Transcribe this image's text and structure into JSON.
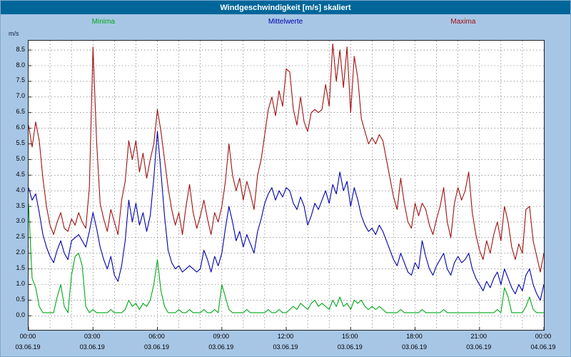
{
  "window": {
    "title": "Windgeschwindigkeit [m/s] skaliert"
  },
  "unit_label": "m/s",
  "chart_data": {
    "type": "line",
    "title": "Windgeschwindigkeit [m/s] skaliert",
    "ylabel": "m/s",
    "xlabel": "",
    "grid": "dashed, hourly vertical lines, 0.5 m/s horizontal lines",
    "legend_position": "top",
    "ylim": [
      -0.45,
      8.8
    ],
    "y_ticks": [
      0.0,
      0.5,
      1.0,
      1.5,
      2.0,
      2.5,
      3.0,
      3.5,
      4.0,
      4.5,
      5.0,
      5.5,
      6.0,
      6.5,
      7.0,
      7.5,
      8.0,
      8.5
    ],
    "x_hours_total": 24,
    "x_ticks": [
      {
        "hour": 0,
        "time": "00:00",
        "date": "03.06.19"
      },
      {
        "hour": 3,
        "time": "03:00",
        "date": "03.06.19"
      },
      {
        "hour": 6,
        "time": "06:00",
        "date": "03.06.19"
      },
      {
        "hour": 9,
        "time": "09:00",
        "date": "03.06.19"
      },
      {
        "hour": 12,
        "time": "12:00",
        "date": "03.06.19"
      },
      {
        "hour": 15,
        "time": "15:00",
        "date": "03.06.19"
      },
      {
        "hour": 18,
        "time": "18:00",
        "date": "03.06.19"
      },
      {
        "hour": 21,
        "time": "21:00",
        "date": "03.06.19"
      },
      {
        "hour": 24,
        "time": "00:00",
        "date": "04.06.19"
      }
    ],
    "sample_interval_minutes": 10,
    "series": [
      {
        "name": "Minima",
        "color": "#00a818",
        "values": [
          3.6,
          1.2,
          0.9,
          0.3,
          0.1,
          0.1,
          0.1,
          0.1,
          0.6,
          1.0,
          0.3,
          0.1,
          1.3,
          1.9,
          2.0,
          1.6,
          0.3,
          0.1,
          0.2,
          0.1,
          0.1,
          0.1,
          0.1,
          0.2,
          0.1,
          0.1,
          0.1,
          0.2,
          0.5,
          0.3,
          0.4,
          0.2,
          0.4,
          0.3,
          0.5,
          1.0,
          1.8,
          0.8,
          0.3,
          0.1,
          0.1,
          0.1,
          0.2,
          0.1,
          0.1,
          0.2,
          0.1,
          0.1,
          0.1,
          0.2,
          0.1,
          0.1,
          0.2,
          0.1,
          1.0,
          0.6,
          0.2,
          0.1,
          0.1,
          0.1,
          0.1,
          0.2,
          0.1,
          0.1,
          0.1,
          0.1,
          0.1,
          0.2,
          0.1,
          0.1,
          0.2,
          0.1,
          0.1,
          0.2,
          0.3,
          0.2,
          0.4,
          0.3,
          0.2,
          0.4,
          0.5,
          0.3,
          0.4,
          0.3,
          0.2,
          0.5,
          0.3,
          0.6,
          0.3,
          0.4,
          0.2,
          0.5,
          0.4,
          0.5,
          0.3,
          0.2,
          0.3,
          0.2,
          0.3,
          0.2,
          0.1,
          0.1,
          0.1,
          0.1,
          0.2,
          0.1,
          0.1,
          0.1,
          0.1,
          0.1,
          0.2,
          0.1,
          0.1,
          0.1,
          0.1,
          0.1,
          0.2,
          0.1,
          0.1,
          0.1,
          0.1,
          0.1,
          0.1,
          0.1,
          0.1,
          0.1,
          0.1,
          0.1,
          0.1,
          0.1,
          0.1,
          0.2,
          0.1,
          0.9,
          0.6,
          0.1,
          0.1,
          0.1,
          0.1,
          0.3,
          0.6,
          0.2,
          0.1,
          0.1,
          0.1
        ]
      },
      {
        "name": "Mittelwerte",
        "color": "#0000a8",
        "values": [
          4.1,
          3.7,
          3.9,
          3.3,
          2.6,
          2.2,
          1.9,
          1.7,
          2.1,
          2.4,
          2.0,
          1.8,
          2.4,
          2.5,
          2.6,
          2.4,
          2.2,
          2.7,
          3.3,
          2.8,
          2.2,
          1.8,
          1.5,
          1.9,
          1.3,
          1.1,
          1.6,
          2.4,
          3.7,
          3.0,
          3.6,
          2.9,
          3.3,
          2.7,
          3.2,
          4.4,
          5.9,
          4.6,
          3.2,
          2.1,
          1.7,
          1.5,
          1.6,
          1.4,
          1.5,
          1.6,
          1.5,
          1.4,
          1.5,
          2.1,
          1.8,
          1.4,
          1.9,
          1.6,
          2.0,
          2.8,
          3.5,
          3.0,
          2.4,
          2.7,
          2.2,
          2.6,
          2.3,
          2.0,
          2.7,
          3.1,
          3.6,
          3.9,
          4.1,
          3.7,
          4.0,
          3.8,
          4.1,
          4.0,
          3.6,
          3.4,
          3.8,
          3.5,
          2.9,
          3.2,
          3.6,
          3.4,
          3.7,
          4.0,
          3.6,
          4.2,
          3.9,
          4.6,
          4.0,
          4.3,
          3.5,
          4.1,
          3.7,
          3.2,
          2.9,
          2.7,
          2.8,
          2.6,
          2.9,
          2.7,
          2.4,
          2.1,
          1.8,
          1.6,
          2.0,
          1.7,
          1.4,
          1.3,
          1.7,
          1.5,
          2.4,
          1.9,
          1.5,
          1.3,
          1.6,
          1.8,
          2.0,
          1.5,
          1.3,
          1.7,
          1.9,
          1.7,
          1.8,
          2.0,
          1.5,
          1.2,
          1.0,
          0.8,
          1.1,
          0.9,
          1.2,
          1.4,
          1.0,
          1.5,
          1.2,
          0.9,
          0.7,
          1.0,
          0.8,
          1.3,
          1.5,
          1.0,
          0.7,
          0.5,
          1.0
        ]
      },
      {
        "name": "Maxima",
        "color": "#a01010",
        "values": [
          6.1,
          5.4,
          6.2,
          5.6,
          4.4,
          3.5,
          2.9,
          2.6,
          3.0,
          3.3,
          2.8,
          2.7,
          3.1,
          2.9,
          3.3,
          3.0,
          2.8,
          4.1,
          8.6,
          5.6,
          3.6,
          3.1,
          2.7,
          3.4,
          3.0,
          2.6,
          3.7,
          4.3,
          5.6,
          5.0,
          5.6,
          4.6,
          5.2,
          4.4,
          5.0,
          5.5,
          6.6,
          5.9,
          5.0,
          4.1,
          3.4,
          2.9,
          3.3,
          2.6,
          3.5,
          4.2,
          3.3,
          2.8,
          3.2,
          3.7,
          3.1,
          2.6,
          3.3,
          3.0,
          3.5,
          4.3,
          5.5,
          4.5,
          4.0,
          4.4,
          3.7,
          4.3,
          3.9,
          3.4,
          4.5,
          5.0,
          5.8,
          6.6,
          7.0,
          6.4,
          7.2,
          6.7,
          7.9,
          7.8,
          6.6,
          6.1,
          7.0,
          6.2,
          5.9,
          6.5,
          6.6,
          6.5,
          6.6,
          7.4,
          6.7,
          8.7,
          7.5,
          8.5,
          7.3,
          8.6,
          6.5,
          8.3,
          7.6,
          6.3,
          5.9,
          5.5,
          5.7,
          5.5,
          5.8,
          5.6,
          5.0,
          4.4,
          3.8,
          3.4,
          4.4,
          3.6,
          3.0,
          2.8,
          3.6,
          3.2,
          3.6,
          3.4,
          2.9,
          2.6,
          3.1,
          3.5,
          4.1,
          3.0,
          2.5,
          3.6,
          4.1,
          3.7,
          4.0,
          4.6,
          3.3,
          2.6,
          2.1,
          1.8,
          2.4,
          2.0,
          2.6,
          3.0,
          2.4,
          3.5,
          3.0,
          2.2,
          1.8,
          2.3,
          2.0,
          3.4,
          3.5,
          2.4,
          1.9,
          1.4,
          2.0
        ]
      }
    ]
  }
}
